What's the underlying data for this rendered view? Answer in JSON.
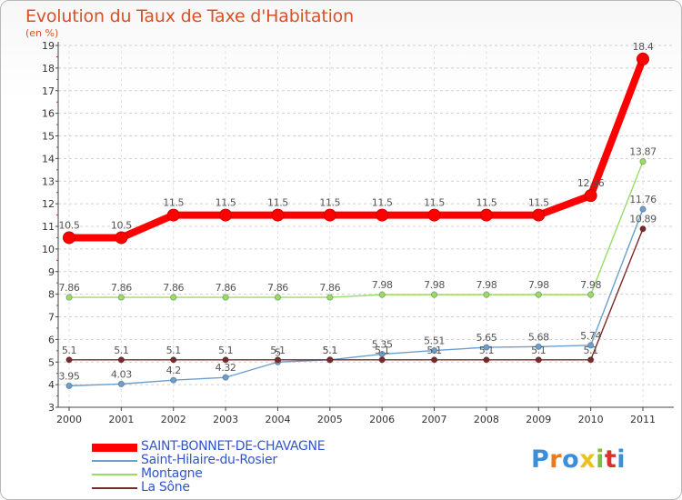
{
  "header": {
    "title": "Evolution du Taux de Taxe d'Habitation",
    "subtitle": "(en %)"
  },
  "branding": {
    "logo_text": "Proxiti"
  },
  "chart_data": {
    "type": "line",
    "title": "Evolution du Taux de Taxe d'Habitation",
    "ylabel": "(en %)",
    "xlabel": "",
    "categories": [
      "2000",
      "2001",
      "2002",
      "2003",
      "2004",
      "2005",
      "2006",
      "2007",
      "2008",
      "2009",
      "2010",
      "2011"
    ],
    "ylim": [
      3,
      19
    ],
    "yticks": [
      3,
      4,
      5,
      6,
      7,
      8,
      9,
      10,
      11,
      12,
      13,
      14,
      15,
      16,
      17,
      18,
      19
    ],
    "grid": "dashed-horizontal",
    "legend_position": "bottom-left",
    "series": [
      {
        "name": "SAINT-BONNET-DE-CHAVAGNE",
        "color": "#ff0000",
        "emphasis": true,
        "values": [
          10.5,
          10.5,
          11.5,
          11.5,
          11.5,
          11.5,
          11.5,
          11.5,
          11.5,
          11.5,
          12.36,
          18.4
        ],
        "labels": [
          "10.5",
          "10.5",
          "11.5",
          "11.5",
          "11.5",
          "11.5",
          "11.5",
          "11.5",
          "11.5",
          "11.5",
          "12.36",
          "18.4"
        ]
      },
      {
        "name": "Saint-Hilaire-du-Rosier",
        "color": "#6b9fcc",
        "values": [
          3.95,
          4.03,
          4.2,
          4.32,
          5.0,
          5.1,
          5.35,
          5.51,
          5.65,
          5.68,
          5.74,
          11.76
        ],
        "labels": [
          "3.95",
          "4.03",
          "4.2",
          "4.32",
          "5",
          "5.1",
          "5.35",
          "5.51",
          "5.65",
          "5.68",
          "5.74",
          "11.76"
        ]
      },
      {
        "name": "Montagne",
        "color": "#99dd66",
        "values": [
          7.86,
          7.86,
          7.86,
          7.86,
          7.86,
          7.86,
          7.98,
          7.98,
          7.98,
          7.98,
          7.98,
          13.87
        ],
        "labels": [
          "7.86",
          "7.86",
          "7.86",
          "7.86",
          "7.86",
          "7.86",
          "7.98",
          "7.98",
          "7.98",
          "7.98",
          "7.98",
          "13.87"
        ]
      },
      {
        "name": "La Sône",
        "color": "#7a2a2a",
        "values": [
          5.1,
          5.1,
          5.1,
          5.1,
          5.1,
          5.1,
          5.1,
          5.1,
          5.1,
          5.1,
          5.1,
          10.89
        ],
        "labels": [
          "5.1",
          "5.1",
          "5.1",
          "5.1",
          "5.1",
          "5.1",
          "5.1",
          "5.1",
          "5.1",
          "5.1",
          "5.1",
          "10.89"
        ]
      }
    ]
  },
  "legend": {
    "items": [
      {
        "label": "SAINT-BONNET-DE-CHAVAGNE",
        "color": "#ff0000",
        "label_color": "#3355cc"
      },
      {
        "label": "Saint-Hilaire-du-Rosier",
        "color": "#6b9fcc",
        "label_color": "#3355cc"
      },
      {
        "label": "Montagne",
        "color": "#99dd66",
        "label_color": "#3355cc"
      },
      {
        "label": "La Sône",
        "color": "#7a2a2a",
        "label_color": "#3355cc"
      }
    ]
  }
}
